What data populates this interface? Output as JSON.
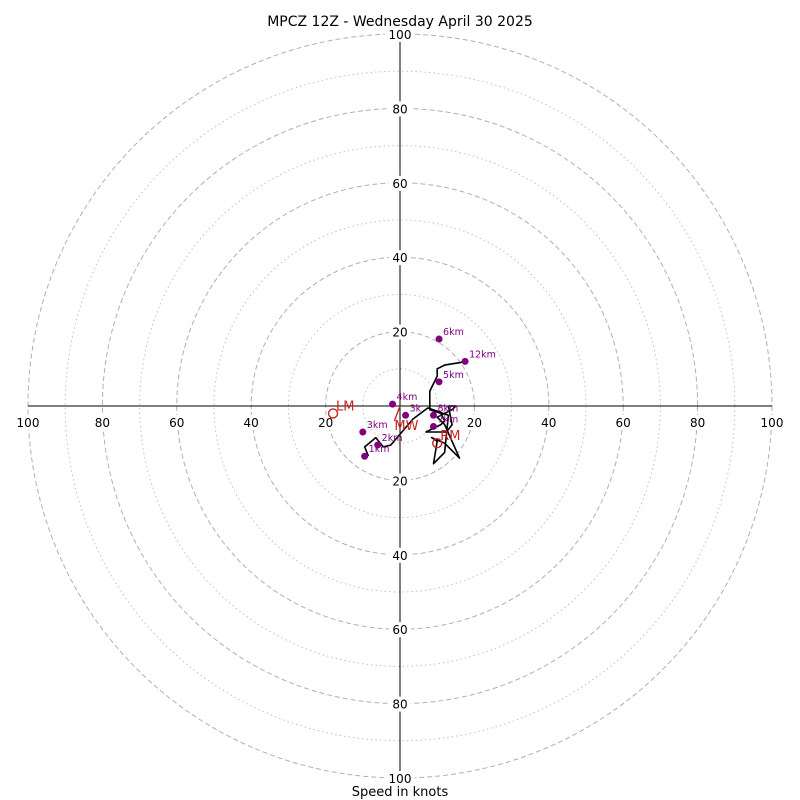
{
  "chart_data": {
    "type": "hodograph",
    "title": "MPCZ 12Z - Wednesday April 30 2025",
    "xlabel": "Speed in knots",
    "max_speed": 100,
    "ring_labels": [
      "20",
      "40",
      "60",
      "80",
      "100"
    ],
    "ring_values": [
      20,
      40,
      60,
      80,
      100
    ],
    "minor_ring_values": [
      10,
      30,
      50,
      70,
      90
    ],
    "grid": true,
    "colors": {
      "hodograph": "#000000",
      "height_points": "#800080",
      "motion": "#cc2222",
      "grid": "#b0b0b0"
    },
    "hodograph": {
      "u": [
        -8.5,
        -9.5,
        -6.5,
        -4.5,
        -2.5,
        3.5,
        7.5,
        13,
        12,
        9,
        10,
        8.5,
        12,
        16,
        12,
        10,
        12,
        14,
        15,
        13,
        14,
        12.5,
        10,
        7,
        11,
        12,
        11,
        8,
        8,
        10,
        10,
        12,
        18
      ],
      "v": [
        -13.5,
        -11,
        -8.5,
        -11,
        -10.5,
        -3.5,
        -0.5,
        -2.5,
        -12.5,
        -15.5,
        -9.5,
        -8.5,
        -10,
        -14,
        -5,
        -3,
        -2,
        -1,
        0,
        0,
        -5,
        -7,
        -7,
        -7,
        -5,
        -4,
        -2,
        -1,
        4,
        8,
        10,
        11,
        12
      ]
    },
    "height_points": [
      {
        "label": "6km",
        "u": 10.5,
        "v": 18
      },
      {
        "label": "12km",
        "u": 17.5,
        "v": 12
      },
      {
        "label": "5km",
        "u": 10.5,
        "v": 6.5
      },
      {
        "label": "4km",
        "u": -2,
        "v": 0.5
      },
      {
        "label": "3k",
        "u": 1.5,
        "v": -2.5
      },
      {
        "label": "8km",
        "u": 9,
        "v": -2.5
      },
      {
        "label": "7km",
        "u": 9,
        "v": -5.5
      },
      {
        "label": "3km",
        "u": -10,
        "v": -7
      },
      {
        "label": "2km",
        "u": -6,
        "v": -10.5
      },
      {
        "label": "1km",
        "u": -9.5,
        "v": -13.5
      }
    ],
    "motion_markers": [
      {
        "label": "LM",
        "u": -18,
        "v": -2
      },
      {
        "label": "RM",
        "u": 10,
        "v": -10
      },
      {
        "label": "MW",
        "u": -1.5,
        "v": -4
      }
    ]
  }
}
